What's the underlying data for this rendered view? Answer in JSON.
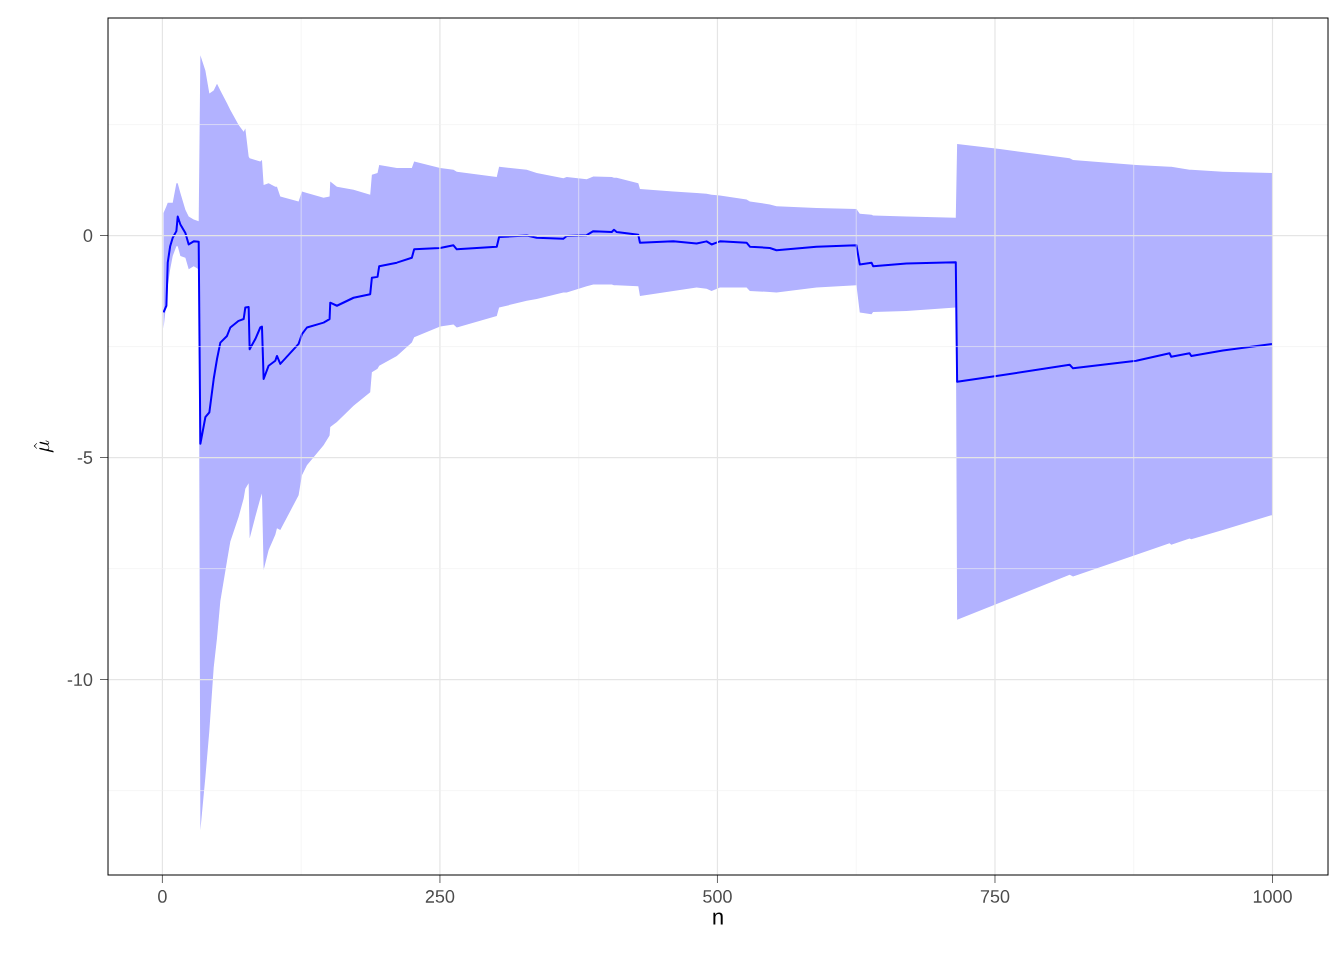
{
  "chart_data": {
    "type": "line",
    "xlabel": "n",
    "ylabel": "\\hat{\\mu}",
    "xlim": [
      -49,
      1050
    ],
    "ylim": [
      -14.4,
      4.9
    ],
    "xticks": [
      0,
      {
        "value": 125,
        "label": null
      },
      250,
      {
        "value": 375,
        "label": null
      },
      500,
      {
        "value": 625,
        "label": null
      },
      750,
      {
        "value": 875,
        "label": null
      },
      1000
    ],
    "yticks": [
      {
        "value": -12.5,
        "label": null
      },
      -10,
      {
        "value": -7.5,
        "label": null
      },
      -5,
      {
        "value": -2.5,
        "label": null
      },
      0,
      {
        "value": 2.5,
        "label": null
      }
    ],
    "grid": true,
    "legend": false,
    "marker": "none",
    "line_style": "solid",
    "series": [
      {
        "color": "#0000ff",
        "x": [
          1,
          3.6,
          4.8,
          7,
          9.3,
          12.6,
          13.8,
          16.2,
          20.7,
          23.7,
          28.2,
          32.7,
          34.2,
          38.7,
          42.3,
          46.2,
          49.2,
          52.2,
          58.2,
          61.2,
          68.7,
          73.2,
          74.7,
          77.7,
          78.6,
          83.7,
          88.2,
          89.7,
          91.2,
          95.7,
          101.7,
          103.2,
          106.2,
          122.7,
          125.7,
          130.2,
          145.2,
          150.6,
          151.2,
          157.2,
          172.2,
          187.2,
          188.7,
          193.8,
          195.3,
          211.2,
          224.7,
          226.8,
          250.2,
          262.2,
          265.2,
          301.2,
          303.3,
          328.2,
          337.2,
          361.2,
          364.2,
          382.2,
          388.2,
          404.8,
          406.8,
          409.2,
          428.7,
          430.2,
          460.2,
          481.2,
          490.2,
          494.7,
          502.2,
          526.2,
          529.2,
          547.2,
          553.2,
          589.2,
          625.2,
          628.2,
          638.8,
          640.2,
          670.2,
          714.7,
          715.9,
          754.3,
          817.3,
          820.3,
          877.3,
          907.3,
          908.8,
          925.3,
          926.8,
          955.3,
          1000
        ],
        "values": [
          -1.73,
          -1.58,
          -0.61,
          -0.24,
          -0.05,
          0.1,
          0.43,
          0.25,
          0.06,
          -0.2,
          -0.13,
          -0.14,
          -4.69,
          -4.09,
          -3.98,
          -3.23,
          -2.78,
          -2.41,
          -2.26,
          -2.07,
          -1.92,
          -1.88,
          -1.62,
          -1.61,
          -2.56,
          -2.33,
          -2.07,
          -2.05,
          -3.23,
          -2.93,
          -2.82,
          -2.71,
          -2.89,
          -2.44,
          -2.22,
          -2.07,
          -1.96,
          -1.88,
          -1.51,
          -1.58,
          -1.4,
          -1.32,
          -0.95,
          -0.93,
          -0.69,
          -0.61,
          -0.5,
          -0.31,
          -0.28,
          -0.22,
          -0.31,
          -0.25,
          -0.03,
          0,
          -0.05,
          -0.07,
          -0.01,
          0.01,
          0.1,
          0.08,
          0.13,
          0.08,
          0.02,
          -0.16,
          -0.13,
          -0.18,
          -0.13,
          -0.2,
          -0.13,
          -0.16,
          -0.25,
          -0.28,
          -0.33,
          -0.25,
          -0.22,
          -0.65,
          -0.61,
          -0.69,
          -0.63,
          -0.6,
          -3.29,
          -3.15,
          -2.91,
          -2.99,
          -2.82,
          -2.65,
          -2.73,
          -2.65,
          -2.71,
          -2.59,
          -2.44
        ],
        "upper": [
          0.51,
          0.66,
          0.74,
          0.74,
          0.74,
          1.18,
          1.18,
          0.96,
          0.58,
          0.43,
          0.36,
          0.32,
          4.06,
          3.72,
          3.2,
          3.27,
          3.42,
          3.27,
          2.98,
          2.83,
          2.49,
          2.34,
          2.41,
          1.78,
          1.74,
          1.7,
          1.67,
          1.7,
          1.14,
          1.18,
          1.1,
          1.1,
          0.88,
          0.77,
          0.99,
          0.96,
          0.85,
          0.88,
          1.22,
          1.1,
          1.03,
          0.92,
          1.37,
          1.41,
          1.59,
          1.52,
          1.52,
          1.67,
          1.52,
          1.48,
          1.44,
          1.32,
          1.55,
          1.48,
          1.41,
          1.29,
          1.32,
          1.27,
          1.33,
          1.32,
          1.3,
          1.3,
          1.18,
          1.05,
          0.99,
          0.96,
          0.94,
          0.92,
          0.9,
          0.81,
          0.77,
          0.7,
          0.66,
          0.62,
          0.6,
          0.49,
          0.47,
          0.45,
          0.43,
          0.4,
          2.06,
          1.95,
          1.74,
          1.7,
          1.59,
          1.55,
          1.55,
          1.48,
          1.48,
          1.44,
          1.41
        ],
        "lower": [
          -2.1,
          -1.5,
          -1.14,
          -0.76,
          -0.46,
          -0.24,
          -0.24,
          -0.46,
          -0.5,
          -0.76,
          -0.69,
          -0.76,
          -13.39,
          -12.2,
          -11.15,
          -9.73,
          -9.06,
          -8.23,
          -7.33,
          -6.89,
          -6.33,
          -5.92,
          -5.7,
          -5.58,
          -6.82,
          -6.33,
          -5.92,
          -5.81,
          -7.53,
          -7.08,
          -6.74,
          -6.59,
          -6.63,
          -5.85,
          -5.4,
          -5.17,
          -4.72,
          -4.5,
          -4.31,
          -4.2,
          -3.83,
          -3.53,
          -3.08,
          -3.0,
          -2.93,
          -2.71,
          -2.41,
          -2.29,
          -2.05,
          -2.0,
          -2.07,
          -1.81,
          -1.62,
          -1.47,
          -1.43,
          -1.28,
          -1.28,
          -1.14,
          -1.1,
          -1.1,
          -1.12,
          -1.12,
          -1.14,
          -1.36,
          -1.25,
          -1.17,
          -1.2,
          -1.25,
          -1.17,
          -1.17,
          -1.25,
          -1.27,
          -1.28,
          -1.17,
          -1.12,
          -1.73,
          -1.77,
          -1.72,
          -1.7,
          -1.62,
          -8.65,
          -8.27,
          -7.64,
          -7.68,
          -7.19,
          -6.93,
          -6.96,
          -6.82,
          -6.84,
          -6.63,
          -6.29
        ]
      }
    ]
  }
}
